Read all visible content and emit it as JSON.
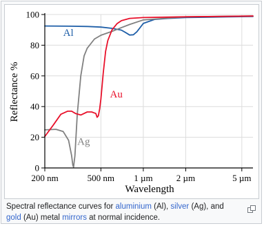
{
  "chart_data": {
    "type": "line",
    "xlabel": "Wavelength",
    "ylabel": "Reflectance %",
    "x_scale": "log",
    "xlim_nm": [
      200,
      6000
    ],
    "ylim": [
      0,
      100
    ],
    "x_ticks": [
      {
        "value": 200,
        "label": "200 nm"
      },
      {
        "value": 500,
        "label": "500 nm"
      },
      {
        "value": 1000,
        "label": "1 µm"
      },
      {
        "value": 2000,
        "label": "2 µm"
      },
      {
        "value": 5000,
        "label": "5 µm"
      }
    ],
    "y_ticks": [
      0,
      20,
      40,
      60,
      80,
      100
    ],
    "grid": true,
    "series": [
      {
        "name": "Al",
        "color": "#1f5fa8",
        "x": [
          200,
          300,
          400,
          500,
          600,
          700,
          750,
          800,
          850,
          900,
          1000,
          1200,
          1500,
          2000,
          3000,
          4000,
          6000
        ],
        "y": [
          92.5,
          92.4,
          92.2,
          91.8,
          91.0,
          89.8,
          88.2,
          86.6,
          86.8,
          88.8,
          94.2,
          96.8,
          97.5,
          98.0,
          98.3,
          98.5,
          98.7
        ]
      },
      {
        "name": "Ag",
        "color": "#808080",
        "x": [
          200,
          240,
          270,
          295,
          310,
          316,
          320,
          327,
          340,
          360,
          380,
          400,
          450,
          500,
          600,
          700,
          800,
          1000,
          2000,
          6000
        ],
        "y": [
          24.8,
          25.2,
          23.8,
          18.0,
          8.0,
          2.0,
          0.5,
          8.0,
          35.0,
          60.0,
          73.0,
          78.0,
          84.0,
          86.5,
          89.0,
          91.5,
          93.5,
          96.5,
          98.5,
          99.0
        ]
      },
      {
        "name": "Au",
        "color": "#e8102a",
        "x": [
          200,
          230,
          260,
          290,
          310,
          330,
          360,
          400,
          430,
          460,
          470,
          480,
          490,
          500,
          520,
          540,
          560,
          600,
          650,
          700,
          800,
          1000,
          2000,
          6000
        ],
        "y": [
          20.5,
          28.0,
          35.0,
          37.0,
          37.0,
          35.5,
          34.5,
          36.5,
          36.5,
          35.5,
          33.0,
          34.0,
          38.5,
          45.0,
          62.0,
          76.0,
          83.0,
          90.0,
          94.0,
          96.0,
          97.5,
          98.0,
          98.5,
          99.0
        ]
      }
    ],
    "annotations": [
      {
        "text": "Al",
        "series": "Al",
        "x": 270,
        "y": 86
      },
      {
        "text": "Au",
        "series": "Au",
        "x": 580,
        "y": 46
      },
      {
        "text": "Ag",
        "series": "Ag",
        "x": 340,
        "y": 15
      }
    ]
  },
  "caption": {
    "part1": "Spectral reflectance curves for ",
    "link_aluminium": "aluminium",
    "part2": " (Al), ",
    "link_silver": "silver",
    "part3": " (Ag), and ",
    "link_gold": "gold",
    "part4": " (Au) metal ",
    "link_mirrors": "mirrors",
    "part5": " at normal incidence."
  },
  "icons": {
    "enlarge": "magnify-clip-icon"
  }
}
